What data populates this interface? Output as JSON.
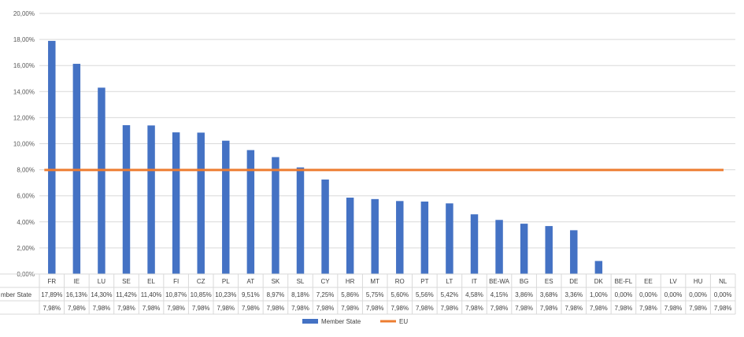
{
  "chart_data": {
    "type": "bar",
    "categories": [
      "FR",
      "IE",
      "LU",
      "SE",
      "EL",
      "FI",
      "CZ",
      "PL",
      "AT",
      "SK",
      "SL",
      "CY",
      "HR",
      "MT",
      "RO",
      "PT",
      "LT",
      "IT",
      "BE-WA",
      "BG",
      "ES",
      "DE",
      "DK",
      "BE-FL",
      "EE",
      "LV",
      "HU",
      "NL"
    ],
    "series": [
      {
        "name": "Member State",
        "type": "bar",
        "color": "#4472C4",
        "values": [
          17.89,
          16.13,
          14.3,
          11.42,
          11.4,
          10.87,
          10.85,
          10.23,
          9.51,
          8.97,
          8.18,
          7.25,
          5.86,
          5.75,
          5.6,
          5.56,
          5.42,
          4.58,
          4.15,
          3.86,
          3.68,
          3.36,
          1.0,
          0.0,
          0.0,
          0.0,
          0.0,
          0.0
        ],
        "labels": [
          "17,89%",
          "16,13%",
          "14,30%",
          "11,42%",
          "11,40%",
          "10,87%",
          "10,85%",
          "10,23%",
          "9,51%",
          "8,97%",
          "8,18%",
          "7,25%",
          "5,86%",
          "5,75%",
          "5,60%",
          "5,56%",
          "5,42%",
          "4,58%",
          "4,15%",
          "3,86%",
          "3,68%",
          "3,36%",
          "1,00%",
          "0,00%",
          "0,00%",
          "0,00%",
          "0,00%",
          "0,00%"
        ]
      },
      {
        "name": "EU",
        "type": "line",
        "color": "#ED7D31",
        "values": [
          7.98,
          7.98,
          7.98,
          7.98,
          7.98,
          7.98,
          7.98,
          7.98,
          7.98,
          7.98,
          7.98,
          7.98,
          7.98,
          7.98,
          7.98,
          7.98,
          7.98,
          7.98,
          7.98,
          7.98,
          7.98,
          7.98,
          7.98,
          7.98,
          7.98,
          7.98,
          7.98,
          7.98
        ],
        "labels": [
          "7,98%",
          "7,98%",
          "7,98%",
          "7,98%",
          "7,98%",
          "7,98%",
          "7,98%",
          "7,98%",
          "7,98%",
          "7,98%",
          "7,98%",
          "7,98%",
          "7,98%",
          "7,98%",
          "7,98%",
          "7,98%",
          "7,98%",
          "7,98%",
          "7,98%",
          "7,98%",
          "7,98%",
          "7,98%",
          "7,98%",
          "7,98%",
          "7,98%",
          "7,98%",
          "7,98%",
          "7,98%"
        ]
      }
    ],
    "ylim": [
      0,
      20
    ],
    "yticks": [
      "0,00%",
      "2,00%",
      "4,00%",
      "6,00%",
      "8,00%",
      "10,00%",
      "12,00%",
      "14,00%",
      "16,00%",
      "18,00%",
      "20,00%"
    ],
    "table_row_labels": [
      "mber State",
      ""
    ],
    "grid": true,
    "legend": "bottom",
    "data_table": true
  }
}
